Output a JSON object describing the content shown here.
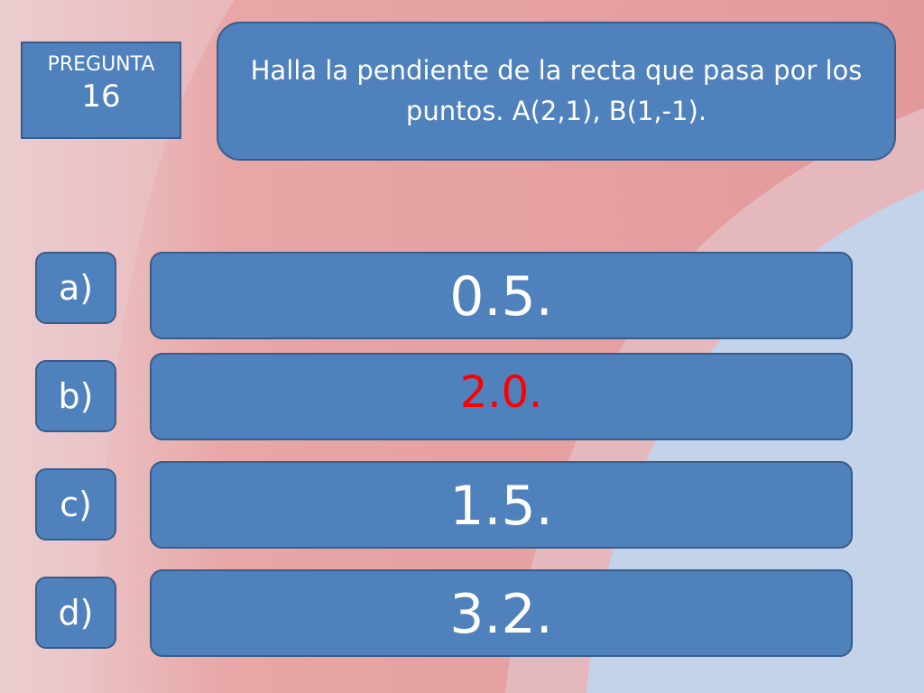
{
  "question_number": {
    "label": "PREGUNTA",
    "number": "16"
  },
  "question": {
    "text": "Halla la pendiente de la recta que pasa por los puntos. A(2,1), B(1,-1)."
  },
  "options": [
    {
      "letter": "a)",
      "value": "0.5."
    },
    {
      "letter": "b)",
      "value": "2.0."
    },
    {
      "letter": "c)",
      "value": "1.5."
    },
    {
      "letter": "d)",
      "value": "3.2."
    }
  ],
  "colors": {
    "box_fill": "#4f81bd",
    "box_border": "#385d8a",
    "highlight_text": "#ff0000",
    "background_red": "#e69a9a",
    "background_blue": "#c3d3ea"
  }
}
